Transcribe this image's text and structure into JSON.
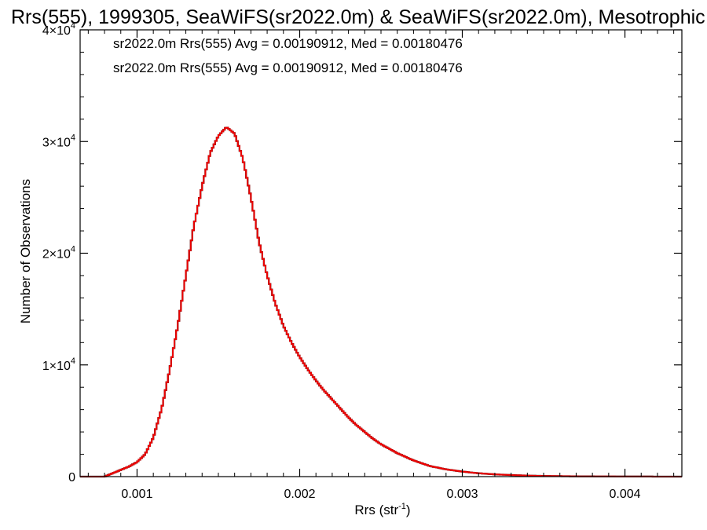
{
  "chart_data": {
    "type": "line",
    "title": "Rrs(555), 1999305, SeaWiFS(sr2022.0m) & SeaWiFS(sr2022.0m), Mesotrophic",
    "xlabel": "Rrs (str",
    "xlabel_sup": "-1",
    "xlabel_end": ")",
    "ylabel": "Number of Observations",
    "xlim": [
      0.00065,
      0.00435
    ],
    "ylim": [
      0,
      40000
    ],
    "x_ticks": [
      {
        "value": 0.001,
        "label": "0.001"
      },
      {
        "value": 0.002,
        "label": "0.002"
      },
      {
        "value": 0.003,
        "label": "0.003"
      },
      {
        "value": 0.004,
        "label": "0.004"
      }
    ],
    "y_ticks": [
      {
        "value": 0,
        "mant": "0",
        "exp": ""
      },
      {
        "value": 10000,
        "mant": "1×10",
        "exp": "4"
      },
      {
        "value": 20000,
        "mant": "2×10",
        "exp": "4"
      },
      {
        "value": 30000,
        "mant": "3×10",
        "exp": "4"
      },
      {
        "value": 40000,
        "mant": "4×10",
        "exp": "4"
      }
    ],
    "series": [
      {
        "name": "sr2022.0m Rrs(555) Avg = 0.00190912, Med = 0.00180476",
        "color": "#000000",
        "x": [
          0.00065,
          0.0008,
          0.00085,
          0.0009,
          0.00095,
          0.001,
          0.00105,
          0.0011,
          0.00115,
          0.0012,
          0.00125,
          0.0013,
          0.00135,
          0.0014,
          0.00145,
          0.0015,
          0.00155,
          0.0016,
          0.00165,
          0.0017,
          0.00175,
          0.0018,
          0.00185,
          0.0019,
          0.00195,
          0.002,
          0.00205,
          0.0021,
          0.00215,
          0.0022,
          0.00225,
          0.0023,
          0.00235,
          0.0024,
          0.00245,
          0.0025,
          0.0026,
          0.0027,
          0.0028,
          0.0029,
          0.003,
          0.0031,
          0.0032,
          0.0033,
          0.0034,
          0.0035,
          0.0036,
          0.0037,
          0.0038,
          0.0039,
          0.004,
          0.0041,
          0.0042,
          0.0043,
          0.00435
        ],
        "y": [
          0,
          0,
          300,
          600,
          900,
          1300,
          2000,
          3500,
          6000,
          9500,
          13500,
          18000,
          22500,
          26000,
          29000,
          30500,
          31300,
          30700,
          28500,
          25000,
          21000,
          18000,
          15500,
          13500,
          12000,
          10700,
          9600,
          8600,
          7700,
          6900,
          6100,
          5300,
          4600,
          4000,
          3400,
          2900,
          2100,
          1450,
          950,
          650,
          450,
          300,
          200,
          140,
          90,
          60,
          40,
          25,
          18,
          12,
          8,
          5,
          3,
          2,
          0
        ]
      },
      {
        "name": "sr2022.0m Rrs(555) Avg = 0.00190912, Med = 0.00180476",
        "color": "#ee0000",
        "x": [
          0.00065,
          0.0008,
          0.00085,
          0.0009,
          0.00095,
          0.001,
          0.00105,
          0.0011,
          0.00115,
          0.0012,
          0.00125,
          0.0013,
          0.00135,
          0.0014,
          0.00145,
          0.0015,
          0.00155,
          0.0016,
          0.00165,
          0.0017,
          0.00175,
          0.0018,
          0.00185,
          0.0019,
          0.00195,
          0.002,
          0.00205,
          0.0021,
          0.00215,
          0.0022,
          0.00225,
          0.0023,
          0.00235,
          0.0024,
          0.00245,
          0.0025,
          0.0026,
          0.0027,
          0.0028,
          0.0029,
          0.003,
          0.0031,
          0.0032,
          0.0033,
          0.0034,
          0.0035,
          0.0036,
          0.0037,
          0.0038,
          0.0039,
          0.004,
          0.0041,
          0.0042,
          0.0043,
          0.00435
        ],
        "y": [
          0,
          0,
          300,
          600,
          900,
          1300,
          2000,
          3500,
          6000,
          9500,
          13500,
          18000,
          22500,
          26000,
          29000,
          30500,
          31300,
          30700,
          28500,
          25000,
          21000,
          18000,
          15500,
          13500,
          12000,
          10700,
          9600,
          8600,
          7700,
          6900,
          6100,
          5300,
          4600,
          4000,
          3400,
          2900,
          2100,
          1450,
          950,
          650,
          450,
          300,
          200,
          140,
          90,
          60,
          40,
          25,
          18,
          12,
          8,
          5,
          3,
          2,
          0
        ]
      }
    ],
    "grid": false,
    "legend_position": "top-left"
  }
}
